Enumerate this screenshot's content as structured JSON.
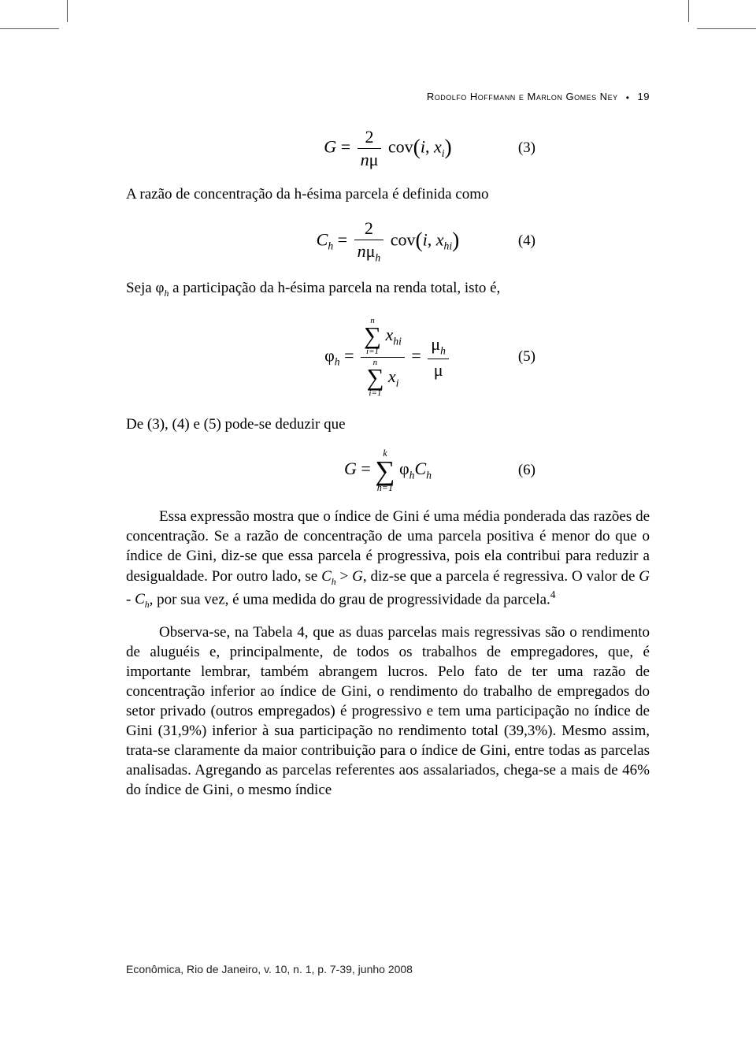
{
  "header": {
    "authors": "Rodolfo Hoffmann e Marlon Gomes Ney",
    "separator": "•",
    "page_number": "19"
  },
  "equations": {
    "eq3_num": "(3)",
    "eq4_num": "(4)",
    "eq5_num": "(5)",
    "eq6_num": "(6)"
  },
  "paragraphs": {
    "p1": "A razão de concentração da h-ésima parcela é definida como",
    "p2_prefix": "Seja ",
    "p2_suffix": " a participação da h-ésima parcela na renda total, isto é,",
    "p3": "De (3), (4) e (5) pode-se deduzir que",
    "p4": "Essa expressão mostra que o índice de Gini é uma média ponderada das razões de concentração. Se a razão de concentração de uma parcela positiva é menor do que o índice de Gini, diz-se que essa parcela é progressiva, pois ela contribui para reduzir a desigualdade. Por outro lado, se ",
    "p4_mid1": ", diz-se que a parcela é regressiva. O valor de ",
    "p4_mid2": ", por sua vez, é uma medida do grau de progressividade da parcela.",
    "p5": "Observa-se, na Tabela 4, que as duas parcelas mais regressivas são o rendimento de aluguéis e, principalmente, de todos os trabalhos de empregadores, que, é importante lembrar, também abrangem lucros. Pelo fato de ter uma razão de concentração inferior ao índice de Gini, o rendimento do trabalho de empregados do setor privado (outros empregados) é progressivo e tem uma participação no índice de Gini (31,9%) inferior à sua participação no rendimento total (39,3%). Mesmo assim, trata-se claramente da maior contribuição para o índice de Gini, entre todas as parcelas analisadas. Agregando as parcelas referentes aos assalariados, chega-se a mais de 46% do índice de Gini, o mesmo índice"
  },
  "footer": "Econômica, Rio de Janeiro, v. 10, n. 1, p. 7-39, junho 2008",
  "footnote_mark": "4"
}
